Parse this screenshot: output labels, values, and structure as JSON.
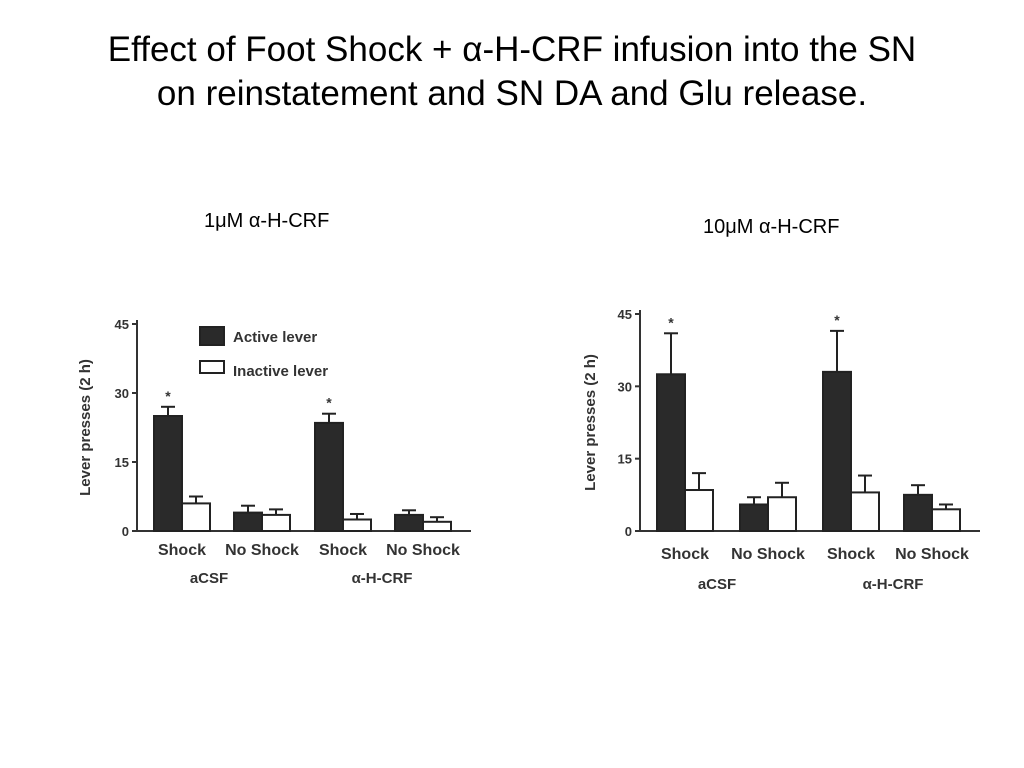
{
  "slide": {
    "title_line1": "Effect of Foot Shock + α-H-CRF infusion into the SN",
    "title_line2": "on reinstatement and SN DA and Glu release."
  },
  "colors": {
    "active": "#2a2a2a",
    "inactive": "#ffffff",
    "axis": "#333333"
  },
  "chart_data": [
    {
      "type": "bar",
      "panel_label": "1μM α-H-CRF",
      "ylabel": "Lever presses  (2 h)",
      "ylim": [
        0,
        45
      ],
      "yticks": [
        "0",
        "15",
        "30",
        "45"
      ],
      "categories": [
        "Shock",
        "No Shock",
        "Shock",
        "No Shock"
      ],
      "groups": [
        "aCSF",
        "α-H-CRF"
      ],
      "series": [
        {
          "name": "Active lever",
          "values": [
            25,
            4,
            23.5,
            3.5
          ],
          "errors": [
            2,
            1.5,
            2,
            1
          ]
        },
        {
          "name": "Inactive lever",
          "values": [
            6,
            3.5,
            2.5,
            2
          ],
          "errors": [
            1.5,
            1.2,
            1.2,
            1
          ]
        }
      ],
      "significance": [
        "*",
        "",
        "*",
        ""
      ],
      "legend": "top-right"
    },
    {
      "type": "bar",
      "panel_label": "10μM α-H-CRF",
      "ylabel": "Lever presses  (2 h)",
      "ylim": [
        0,
        45
      ],
      "yticks": [
        "0",
        "15",
        "30",
        "45"
      ],
      "categories": [
        "Shock",
        "No Shock",
        "Shock",
        "No Shock"
      ],
      "groups": [
        "aCSF",
        "α-H-CRF"
      ],
      "series": [
        {
          "name": "Active lever",
          "values": [
            32.5,
            5.5,
            33,
            7.5
          ],
          "errors": [
            8.5,
            1.5,
            8.5,
            2
          ]
        },
        {
          "name": "Inactive lever",
          "values": [
            8.5,
            7,
            8,
            4.5
          ],
          "errors": [
            3.5,
            3,
            3.5,
            1
          ]
        }
      ],
      "significance": [
        "*",
        "",
        "*",
        ""
      ],
      "legend": "none"
    }
  ]
}
